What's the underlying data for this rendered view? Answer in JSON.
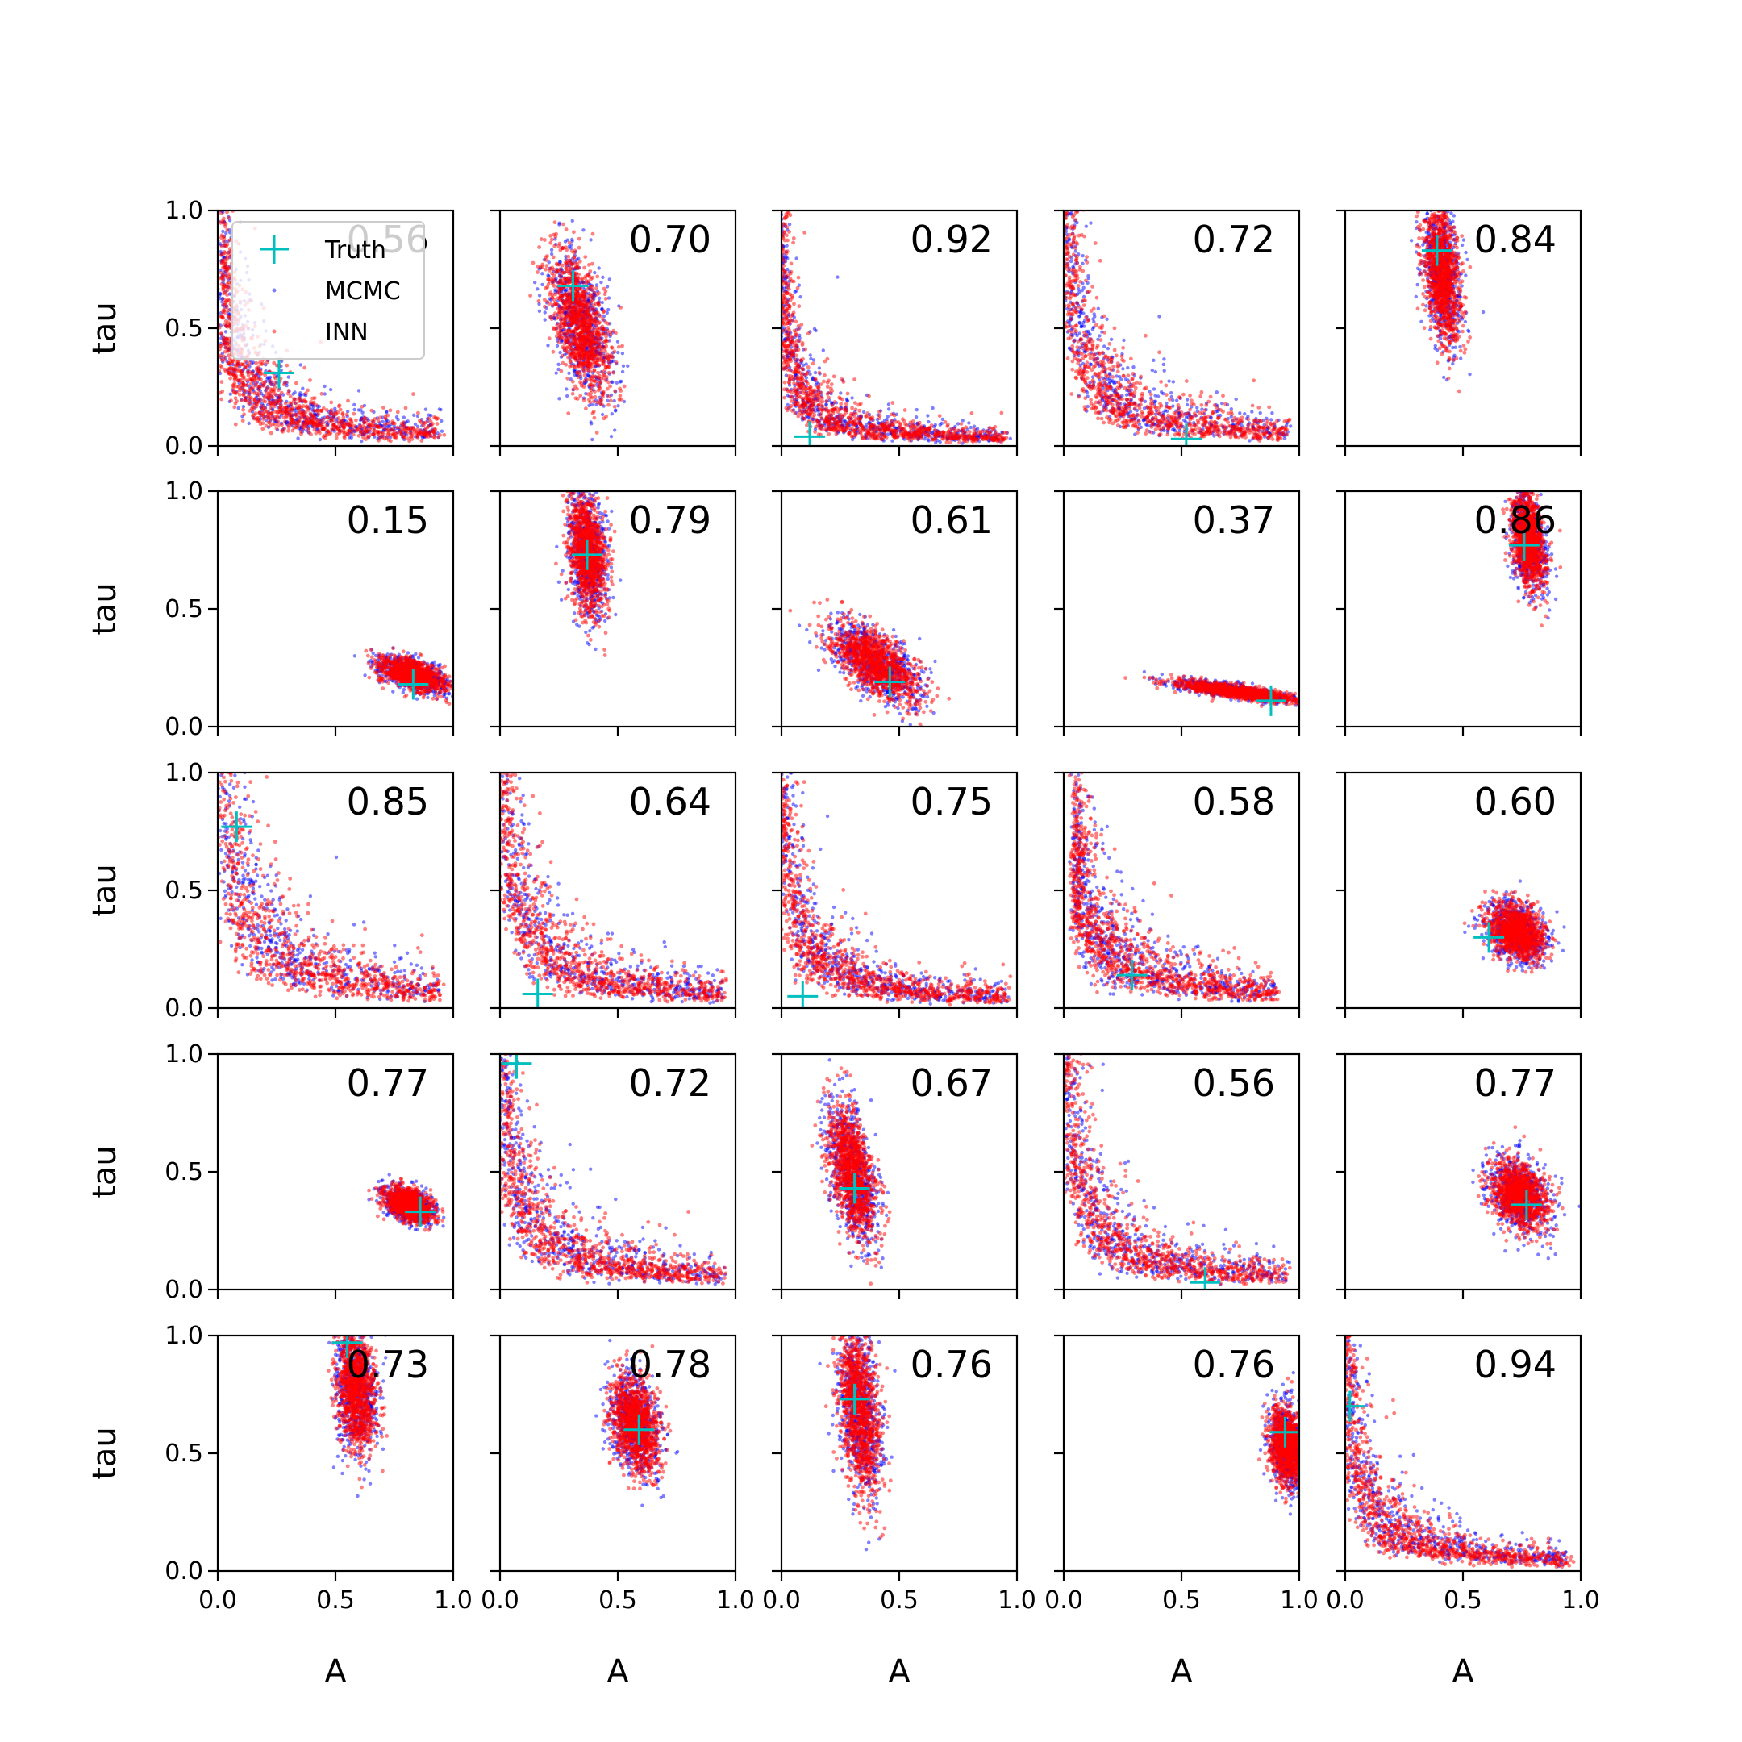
{
  "chart_data": {
    "type": "scatter",
    "grid_rows": 5,
    "grid_cols": 5,
    "xlabel": "A",
    "ylabel": "tau",
    "xlim": [
      0,
      1
    ],
    "ylim": [
      0,
      1
    ],
    "x_ticks": [
      0.0,
      0.5,
      1.0
    ],
    "y_ticks": [
      0.0,
      0.5,
      1.0
    ],
    "x_tick_labels": [
      "0.0",
      "0.5",
      "1.0"
    ],
    "y_tick_labels": [
      "0.0",
      "0.5",
      "1.0"
    ],
    "grid": false,
    "legend": {
      "placement": "upper-left of first panel",
      "entries": [
        {
          "label": "Truth",
          "color": "#00bfbf",
          "marker": "plus"
        },
        {
          "label": "MCMC",
          "color": "#0000ff",
          "marker": "dot"
        },
        {
          "label": "INN",
          "color": "#ff0000",
          "marker": "dot"
        }
      ]
    },
    "series_colors": {
      "truth": "#00bfbf",
      "mcmc": "#0000ff",
      "inn": "#ff0000"
    },
    "panels": [
      {
        "overlap": "0.56",
        "truth": [
          0.26,
          0.31
        ],
        "shape": "lband",
        "params": {
          "c": 0.045,
          "xmin": 0.02,
          "xmax": 0.95
        }
      },
      {
        "overlap": "0.70",
        "truth": [
          0.31,
          0.68
        ],
        "shape": "blob",
        "params": {
          "cx": 0.34,
          "cy": 0.52,
          "sx": 0.065,
          "sy": 0.15,
          "rho": -0.55
        }
      },
      {
        "overlap": "0.92",
        "truth": [
          0.12,
          0.04
        ],
        "shape": "lband",
        "params": {
          "c": 0.028,
          "xmin": 0.0,
          "xmax": 0.95
        }
      },
      {
        "overlap": "0.72",
        "truth": [
          0.52,
          0.03
        ],
        "shape": "lband",
        "params": {
          "c": 0.05,
          "xmin": 0.0,
          "xmax": 0.95
        }
      },
      {
        "overlap": "0.84",
        "truth": [
          0.39,
          0.83
        ],
        "shape": "blob",
        "params": {
          "cx": 0.41,
          "cy": 0.74,
          "sx": 0.04,
          "sy": 0.15,
          "rho": -0.4
        }
      },
      {
        "overlap": "0.15",
        "truth": [
          0.83,
          0.18
        ],
        "shape": "blob",
        "params": {
          "cx": 0.83,
          "cy": 0.22,
          "sx": 0.07,
          "sy": 0.035,
          "rho": -0.55
        }
      },
      {
        "overlap": "0.79",
        "truth": [
          0.37,
          0.73
        ],
        "shape": "blob",
        "params": {
          "cx": 0.37,
          "cy": 0.74,
          "sx": 0.04,
          "sy": 0.13,
          "rho": -0.3
        }
      },
      {
        "overlap": "0.61",
        "truth": [
          0.46,
          0.19
        ],
        "shape": "blob",
        "params": {
          "cx": 0.4,
          "cy": 0.27,
          "sx": 0.09,
          "sy": 0.08,
          "rho": -0.6
        }
      },
      {
        "overlap": "0.37",
        "truth": [
          0.88,
          0.11
        ],
        "shape": "blob",
        "params": {
          "cx": 0.73,
          "cy": 0.15,
          "sx": 0.13,
          "sy": 0.022,
          "rho": -0.8
        }
      },
      {
        "overlap": "0.86",
        "truth": [
          0.76,
          0.77
        ],
        "shape": "blob",
        "params": {
          "cx": 0.78,
          "cy": 0.79,
          "sx": 0.035,
          "sy": 0.1,
          "rho": -0.35
        }
      },
      {
        "overlap": "0.85",
        "truth": [
          0.08,
          0.77
        ],
        "shape": "lband",
        "params": {
          "c": 0.065,
          "xmin": 0.0,
          "xmax": 0.95
        }
      },
      {
        "overlap": "0.64",
        "truth": [
          0.16,
          0.06
        ],
        "shape": "lband",
        "params": {
          "c": 0.055,
          "xmin": 0.0,
          "xmax": 0.95
        }
      },
      {
        "overlap": "0.75",
        "truth": [
          0.09,
          0.05
        ],
        "shape": "lband",
        "params": {
          "c": 0.04,
          "xmin": 0.0,
          "xmax": 0.95
        }
      },
      {
        "overlap": "0.58",
        "truth": [
          0.29,
          0.14
        ],
        "shape": "lband",
        "params": {
          "c": 0.055,
          "xmin": 0.05,
          "xmax": 0.9
        }
      },
      {
        "overlap": "0.60",
        "truth": [
          0.61,
          0.3
        ],
        "shape": "blob",
        "params": {
          "cx": 0.73,
          "cy": 0.32,
          "sx": 0.06,
          "sy": 0.06,
          "rho": -0.3
        }
      },
      {
        "overlap": "0.77",
        "truth": [
          0.86,
          0.33
        ],
        "shape": "blob",
        "params": {
          "cx": 0.81,
          "cy": 0.36,
          "sx": 0.05,
          "sy": 0.035,
          "rho": -0.4
        }
      },
      {
        "overlap": "0.72",
        "truth": [
          0.07,
          0.96
        ],
        "shape": "lband",
        "params": {
          "c": 0.05,
          "xmin": 0.0,
          "xmax": 0.95
        }
      },
      {
        "overlap": "0.67",
        "truth": [
          0.31,
          0.43
        ],
        "shape": "blob",
        "params": {
          "cx": 0.3,
          "cy": 0.5,
          "sx": 0.05,
          "sy": 0.14,
          "rho": -0.5
        }
      },
      {
        "overlap": "0.56",
        "truth": [
          0.6,
          0.03
        ],
        "shape": "lband",
        "params": {
          "c": 0.05,
          "xmin": 0.0,
          "xmax": 0.95
        }
      },
      {
        "overlap": "0.77",
        "truth": [
          0.77,
          0.36
        ],
        "shape": "blob",
        "params": {
          "cx": 0.74,
          "cy": 0.4,
          "sx": 0.06,
          "sy": 0.07,
          "rho": -0.3
        }
      },
      {
        "overlap": "0.73",
        "truth": [
          0.55,
          0.97
        ],
        "shape": "blob",
        "params": {
          "cx": 0.59,
          "cy": 0.77,
          "sx": 0.04,
          "sy": 0.13,
          "rho": -0.2
        }
      },
      {
        "overlap": "0.78",
        "truth": [
          0.59,
          0.6
        ],
        "shape": "blob",
        "params": {
          "cx": 0.57,
          "cy": 0.63,
          "sx": 0.05,
          "sy": 0.1,
          "rho": -0.3
        }
      },
      {
        "overlap": "0.76",
        "truth": [
          0.31,
          0.73
        ],
        "shape": "blob",
        "params": {
          "cx": 0.33,
          "cy": 0.68,
          "sx": 0.045,
          "sy": 0.17,
          "rho": -0.35
        }
      },
      {
        "overlap": "0.76",
        "truth": [
          0.94,
          0.59
        ],
        "shape": "blob",
        "params": {
          "cx": 0.95,
          "cy": 0.53,
          "sx": 0.035,
          "sy": 0.08,
          "rho": -0.2
        }
      },
      {
        "overlap": "0.94",
        "truth": [
          0.02,
          0.7
        ],
        "shape": "lband",
        "params": {
          "c": 0.04,
          "xmin": 0.0,
          "xmax": 0.95
        }
      }
    ]
  }
}
